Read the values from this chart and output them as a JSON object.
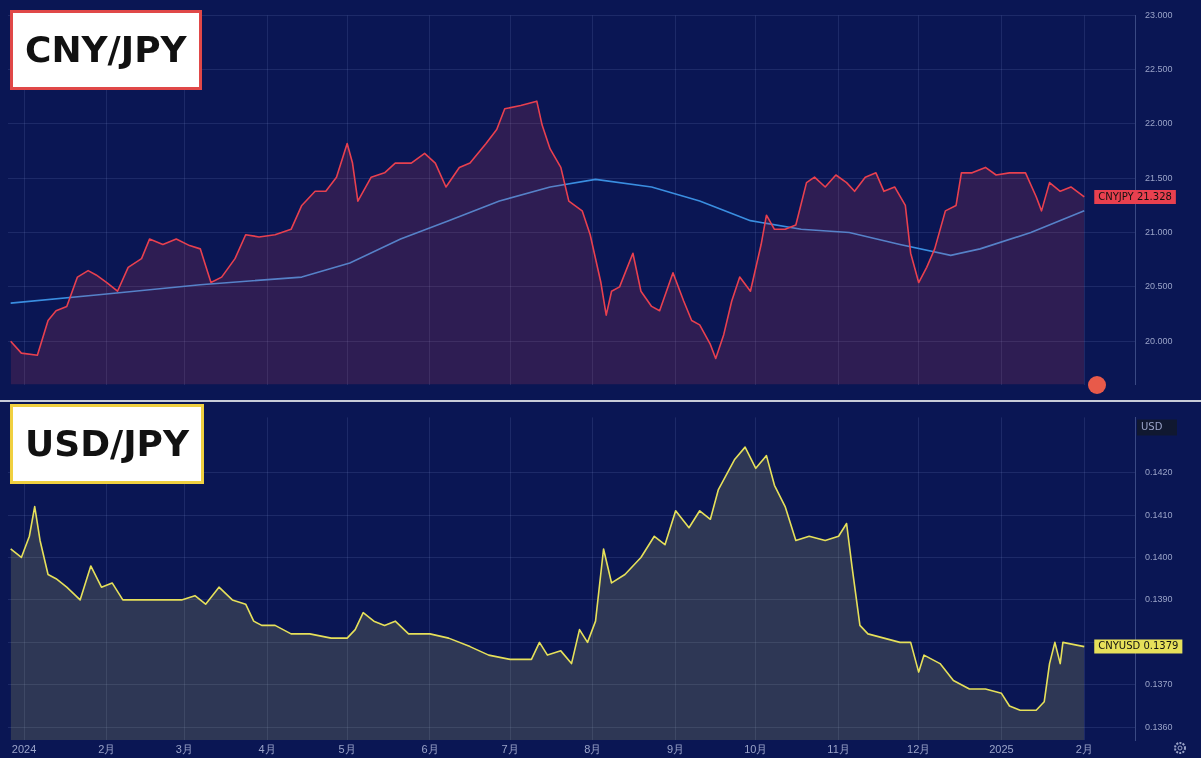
{
  "chart_data": [
    {
      "type": "area",
      "title": "CNY/JPY",
      "xlim": [
        "2023-12-26",
        "2025-02-20"
      ],
      "ylim": [
        19.6,
        23.0
      ],
      "xticks": [
        {
          "value": "2024-01-01",
          "label": null
        },
        {
          "value": "2024-02-01",
          "label": null
        },
        {
          "value": "2024-03-01",
          "label": null
        },
        {
          "value": "2024-04-01",
          "label": null
        },
        {
          "value": "2024-05-01",
          "label": null
        },
        {
          "value": "2024-06-01",
          "label": null
        },
        {
          "value": "2024-07-01",
          "label": null
        },
        {
          "value": "2024-08-01",
          "label": null
        },
        {
          "value": "2024-09-01",
          "label": null
        },
        {
          "value": "2024-10-01",
          "label": null
        },
        {
          "value": "2024-11-01",
          "label": null
        },
        {
          "value": "2024-12-01",
          "label": null
        },
        {
          "value": "2025-01-01",
          "label": null
        },
        {
          "value": "2025-02-01",
          "label": null
        }
      ],
      "yticks": [
        {
          "value": 20,
          "label": "20.000"
        },
        {
          "value": 20.5,
          "label": "20.500"
        },
        {
          "value": 21,
          "label": "21.000"
        },
        {
          "value": 21.5,
          "label": "21.500"
        },
        {
          "value": 22,
          "label": "22.000"
        },
        {
          "value": 22.5,
          "label": "22.500"
        },
        {
          "value": 23,
          "label": "23.000"
        }
      ],
      "grid": true,
      "tick_labels": "y",
      "annotations": [
        {
          "text": "CNYJPY 21.328",
          "x": "2025-02-01",
          "y": 21.328
        }
      ],
      "series": [
        {
          "type": "area",
          "color": "#e8404f",
          "x": [
            "2023-12-27",
            "2023-12-31",
            "2024-01-06",
            "2024-01-10",
            "2024-01-13",
            "2024-01-17",
            "2024-01-21",
            "2024-01-25",
            "2024-01-28",
            "2024-02-01",
            "2024-02-05",
            "2024-02-09",
            "2024-02-14",
            "2024-02-17",
            "2024-02-22",
            "2024-02-27",
            "2024-03-03",
            "2024-03-07",
            "2024-03-11",
            "2024-03-15",
            "2024-03-20",
            "2024-03-24",
            "2024-03-29",
            "2024-04-04",
            "2024-04-10",
            "2024-04-14",
            "2024-04-19",
            "2024-04-23",
            "2024-04-27",
            "2024-05-01",
            "2024-05-03",
            "2024-05-05",
            "2024-05-10",
            "2024-05-15",
            "2024-05-19",
            "2024-05-25",
            "2024-05-30",
            "2024-06-03",
            "2024-06-07",
            "2024-06-12",
            "2024-06-16",
            "2024-06-22",
            "2024-06-26",
            "2024-06-29",
            "2024-07-05",
            "2024-07-11",
            "2024-07-13",
            "2024-07-16",
            "2024-07-20",
            "2024-07-23",
            "2024-07-28",
            "2024-07-31",
            "2024-08-04",
            "2024-08-06",
            "2024-08-08",
            "2024-08-11",
            "2024-08-16",
            "2024-08-19",
            "2024-08-23",
            "2024-08-26",
            "2024-08-31",
            "2024-09-04",
            "2024-09-07",
            "2024-09-10",
            "2024-09-14",
            "2024-09-16",
            "2024-09-19",
            "2024-09-22",
            "2024-09-25",
            "2024-09-29",
            "2024-10-03",
            "2024-10-05",
            "2024-10-08",
            "2024-10-12",
            "2024-10-16",
            "2024-10-20",
            "2024-10-23",
            "2024-10-27",
            "2024-10-31",
            "2024-11-04",
            "2024-11-07",
            "2024-11-11",
            "2024-11-15",
            "2024-11-18",
            "2024-11-22",
            "2024-11-26",
            "2024-11-28",
            "2024-12-01",
            "2024-12-04",
            "2024-12-07",
            "2024-12-11",
            "2024-12-15",
            "2024-12-17",
            "2024-12-21",
            "2024-12-26",
            "2024-12-30",
            "2025-01-04",
            "2025-01-10",
            "2025-01-14",
            "2025-01-16",
            "2025-01-19",
            "2025-01-23",
            "2025-01-27",
            "2025-02-01"
          ],
          "values": [
            20.0,
            19.89,
            19.87,
            20.19,
            20.28,
            20.32,
            20.59,
            20.65,
            20.61,
            20.54,
            20.46,
            20.68,
            20.76,
            20.94,
            20.89,
            20.94,
            20.88,
            20.85,
            20.54,
            20.59,
            20.76,
            20.98,
            20.96,
            20.98,
            21.03,
            21.25,
            21.38,
            21.38,
            21.51,
            21.82,
            21.64,
            21.29,
            21.51,
            21.55,
            21.64,
            21.64,
            21.73,
            21.64,
            21.42,
            21.6,
            21.64,
            21.82,
            21.95,
            22.14,
            22.17,
            22.21,
            21.99,
            21.77,
            21.6,
            21.29,
            21.2,
            20.98,
            20.54,
            20.24,
            20.46,
            20.5,
            20.81,
            20.46,
            20.32,
            20.28,
            20.63,
            20.37,
            20.19,
            20.15,
            19.97,
            19.84,
            20.06,
            20.37,
            20.59,
            20.46,
            20.89,
            21.16,
            21.03,
            21.03,
            21.07,
            21.46,
            21.51,
            21.42,
            21.53,
            21.46,
            21.38,
            21.51,
            21.55,
            21.38,
            21.42,
            21.25,
            20.81,
            20.54,
            20.68,
            20.85,
            21.2,
            21.25,
            21.55,
            21.55,
            21.6,
            21.53,
            21.55,
            21.55,
            21.33,
            21.2,
            21.46,
            21.38,
            21.42,
            21.328
          ]
        },
        {
          "type": "line",
          "color": "#3a8ee0",
          "x": [
            "2023-12-27",
            "2024-01-30",
            "2024-03-07",
            "2024-04-14",
            "2024-05-02",
            "2024-05-21",
            "2024-06-08",
            "2024-06-27",
            "2024-07-16",
            "2024-08-02",
            "2024-08-23",
            "2024-09-10",
            "2024-09-29",
            "2024-10-18",
            "2024-11-05",
            "2024-11-24",
            "2024-12-13",
            "2024-12-24",
            "2025-01-12",
            "2025-02-01"
          ],
          "values": [
            20.35,
            20.43,
            20.52,
            20.59,
            20.72,
            20.94,
            21.11,
            21.29,
            21.42,
            21.49,
            21.42,
            21.29,
            21.11,
            21.03,
            21.0,
            20.89,
            20.79,
            20.85,
            21.0,
            21.2
          ]
        }
      ]
    },
    {
      "type": "area",
      "title": "USD/JPY",
      "ylabel": "USD",
      "xlim": [
        "2023-12-26",
        "2025-02-20"
      ],
      "ylim": [
        0.1357,
        0.1433
      ],
      "xticks": [
        {
          "value": "2024-01-01",
          "label": "2024"
        },
        {
          "value": "2024-02-01",
          "label": "2月"
        },
        {
          "value": "2024-03-01",
          "label": "3月"
        },
        {
          "value": "2024-04-01",
          "label": "4月"
        },
        {
          "value": "2024-05-01",
          "label": "5月"
        },
        {
          "value": "2024-06-01",
          "label": "6月"
        },
        {
          "value": "2024-07-01",
          "label": "7月"
        },
        {
          "value": "2024-08-01",
          "label": "8月"
        },
        {
          "value": "2024-09-01",
          "label": "9月"
        },
        {
          "value": "2024-10-01",
          "label": "10月"
        },
        {
          "value": "2024-11-01",
          "label": "11月"
        },
        {
          "value": "2024-12-01",
          "label": "12月"
        },
        {
          "value": "2025-01-01",
          "label": "2025"
        },
        {
          "value": "2025-02-01",
          "label": "2月"
        }
      ],
      "yticks": [
        {
          "value": 0.136,
          "label": "0.1360"
        },
        {
          "value": 0.137,
          "label": "0.1370"
        },
        {
          "value": 0.138,
          "label": null
        },
        {
          "value": 0.139,
          "label": "0.1390"
        },
        {
          "value": 0.14,
          "label": "0.1400"
        },
        {
          "value": 0.141,
          "label": "0.1410"
        },
        {
          "value": 0.142,
          "label": "0.1420"
        }
      ],
      "grid": true,
      "annotations": [
        {
          "text": "CNYUSD 0.1379",
          "x": "2025-02-01",
          "y": 0.1379
        }
      ],
      "series": [
        {
          "type": "area",
          "color": "#e6e05a",
          "x": [
            "2023-12-27",
            "2023-12-31",
            "2024-01-03",
            "2024-01-05",
            "2024-01-07",
            "2024-01-10",
            "2024-01-13",
            "2024-01-17",
            "2024-01-22",
            "2024-01-26",
            "2024-01-30",
            "2024-02-03",
            "2024-02-07",
            "2024-02-14",
            "2024-02-23",
            "2024-02-29",
            "2024-03-05",
            "2024-03-09",
            "2024-03-14",
            "2024-03-19",
            "2024-03-24",
            "2024-03-27",
            "2024-03-30",
            "2024-04-04",
            "2024-04-10",
            "2024-04-17",
            "2024-04-25",
            "2024-05-01",
            "2024-05-04",
            "2024-05-07",
            "2024-05-11",
            "2024-05-15",
            "2024-05-19",
            "2024-05-24",
            "2024-06-01",
            "2024-06-08",
            "2024-06-16",
            "2024-06-23",
            "2024-07-01",
            "2024-07-09",
            "2024-07-12",
            "2024-07-15",
            "2024-07-20",
            "2024-07-24",
            "2024-07-27",
            "2024-07-30",
            "2024-08-02",
            "2024-08-05",
            "2024-08-08",
            "2024-08-13",
            "2024-08-19",
            "2024-08-24",
            "2024-08-28",
            "2024-09-01",
            "2024-09-06",
            "2024-09-10",
            "2024-09-14",
            "2024-09-17",
            "2024-09-23",
            "2024-09-27",
            "2024-10-01",
            "2024-10-05",
            "2024-10-08",
            "2024-10-12",
            "2024-10-16",
            "2024-10-21",
            "2024-10-27",
            "2024-11-01",
            "2024-11-04",
            "2024-11-06",
            "2024-11-09",
            "2024-11-12",
            "2024-11-18",
            "2024-11-24",
            "2024-11-28",
            "2024-12-01",
            "2024-12-03",
            "2024-12-09",
            "2024-12-14",
            "2024-12-20",
            "2024-12-26",
            "2025-01-01",
            "2025-01-04",
            "2025-01-08",
            "2025-01-14",
            "2025-01-17",
            "2025-01-19",
            "2025-01-21",
            "2025-01-23",
            "2025-01-24",
            "2025-02-01"
          ],
          "values": [
            0.1402,
            0.14,
            0.1405,
            0.1412,
            0.1404,
            0.1396,
            0.1395,
            0.1393,
            0.139,
            0.1398,
            0.1393,
            0.1394,
            0.139,
            0.139,
            0.139,
            0.139,
            0.1391,
            0.1389,
            0.1393,
            0.139,
            0.1389,
            0.1385,
            0.1384,
            0.1384,
            0.1382,
            0.1382,
            0.1381,
            0.1381,
            0.1383,
            0.1387,
            0.1385,
            0.1384,
            0.1385,
            0.1382,
            0.1382,
            0.1381,
            0.1379,
            0.1377,
            0.1376,
            0.1376,
            0.138,
            0.1377,
            0.1378,
            0.1375,
            0.1383,
            0.138,
            0.1385,
            0.1402,
            0.1394,
            0.1396,
            0.14,
            0.1405,
            0.1403,
            0.1411,
            0.1407,
            0.1411,
            0.1409,
            0.1416,
            0.1423,
            0.1426,
            0.1421,
            0.1424,
            0.1417,
            0.1412,
            0.1404,
            0.1405,
            0.1404,
            0.1405,
            0.1408,
            0.1398,
            0.1384,
            0.1382,
            0.1381,
            0.138,
            0.138,
            0.1373,
            0.1377,
            0.1375,
            0.1371,
            0.1369,
            0.1369,
            0.1368,
            0.1365,
            0.1364,
            0.1364,
            0.1366,
            0.1375,
            0.138,
            0.1375,
            0.138,
            0.1379
          ]
        }
      ]
    }
  ]
}
